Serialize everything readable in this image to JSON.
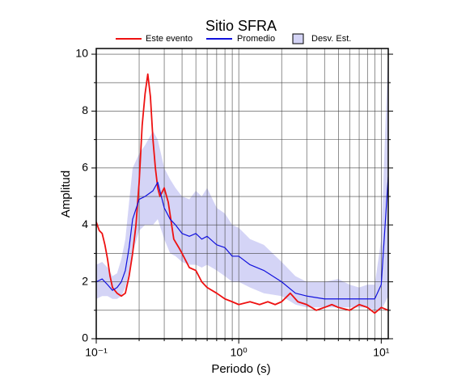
{
  "chart_data": {
    "type": "line",
    "title": "Sitio SFRA",
    "xlabel": "Periodo (s)",
    "ylabel": "Amplitud",
    "xscale": "log",
    "grid": true,
    "legend": "top",
    "xlim": [
      0.1,
      11.2
    ],
    "ylim": [
      0,
      10.2
    ],
    "xticks": [
      {
        "value": 0.1,
        "label": "10⁻¹"
      },
      {
        "value": 1,
        "label": "10⁰"
      },
      {
        "value": 10,
        "label": "10¹"
      }
    ],
    "xminorticks": [
      0.2,
      0.3,
      0.4,
      0.5,
      0.6,
      0.7,
      0.8,
      0.9,
      2,
      3,
      4,
      5,
      6,
      7,
      8,
      9
    ],
    "yticks": [
      0,
      2,
      4,
      6,
      8,
      10
    ],
    "yminorticks": [
      1,
      3,
      5,
      7,
      9
    ],
    "series": [
      {
        "name": "Este evento",
        "color": "#ee1111",
        "x": [
          0.1,
          0.105,
          0.11,
          0.115,
          0.12,
          0.125,
          0.13,
          0.14,
          0.15,
          0.16,
          0.17,
          0.18,
          0.19,
          0.2,
          0.21,
          0.22,
          0.23,
          0.24,
          0.25,
          0.26,
          0.27,
          0.28,
          0.3,
          0.32,
          0.35,
          0.38,
          0.4,
          0.45,
          0.5,
          0.55,
          0.6,
          0.7,
          0.8,
          0.9,
          1.0,
          1.2,
          1.4,
          1.6,
          1.8,
          2.0,
          2.3,
          2.6,
          3.0,
          3.5,
          4.0,
          4.5,
          5.0,
          6.0,
          7.0,
          8.0,
          9.0,
          10,
          11.2
        ],
        "values": [
          4.1,
          3.8,
          3.7,
          3.3,
          2.8,
          2.2,
          1.8,
          1.6,
          1.5,
          1.6,
          2.2,
          3.0,
          4.0,
          5.5,
          7.5,
          8.6,
          9.3,
          8.5,
          7.0,
          6.0,
          5.3,
          5.0,
          5.3,
          4.8,
          3.5,
          3.2,
          3.0,
          2.5,
          2.4,
          2.0,
          1.8,
          1.6,
          1.4,
          1.3,
          1.2,
          1.3,
          1.2,
          1.3,
          1.2,
          1.3,
          1.6,
          1.3,
          1.2,
          1.0,
          1.1,
          1.2,
          1.1,
          1.0,
          1.2,
          1.1,
          0.9,
          1.1,
          1.0
        ]
      },
      {
        "name": "Promedio",
        "color": "#1111dd",
        "x": [
          0.1,
          0.11,
          0.12,
          0.13,
          0.14,
          0.15,
          0.16,
          0.17,
          0.18,
          0.2,
          0.22,
          0.25,
          0.27,
          0.3,
          0.33,
          0.36,
          0.4,
          0.45,
          0.5,
          0.55,
          0.6,
          0.7,
          0.8,
          0.9,
          1.0,
          1.2,
          1.5,
          2.0,
          2.5,
          3.0,
          4.0,
          5.0,
          6.0,
          7.0,
          8.0,
          9.0,
          10,
          11.2
        ],
        "values": [
          2.0,
          2.1,
          1.9,
          1.7,
          1.8,
          2.0,
          2.4,
          3.2,
          4.2,
          4.9,
          5.0,
          5.2,
          5.5,
          4.6,
          4.2,
          4.0,
          3.7,
          3.6,
          3.7,
          3.5,
          3.6,
          3.3,
          3.2,
          2.9,
          2.9,
          2.6,
          2.4,
          2.0,
          1.6,
          1.5,
          1.4,
          1.4,
          1.4,
          1.4,
          1.4,
          1.4,
          1.9,
          5.7
        ]
      },
      {
        "name": "Desv. Est.",
        "color": "#d4d4f6",
        "x": [
          0.1,
          0.11,
          0.12,
          0.13,
          0.14,
          0.15,
          0.16,
          0.17,
          0.18,
          0.2,
          0.22,
          0.25,
          0.27,
          0.3,
          0.33,
          0.36,
          0.4,
          0.45,
          0.5,
          0.55,
          0.6,
          0.7,
          0.8,
          0.9,
          1.0,
          1.2,
          1.5,
          2.0,
          2.5,
          3.0,
          4.0,
          5.0,
          6.0,
          7.0,
          8.0,
          9.0,
          10,
          11.2
        ],
        "lower": [
          1.4,
          1.5,
          1.5,
          1.4,
          1.4,
          1.5,
          1.8,
          2.3,
          3.0,
          3.8,
          4.0,
          4.0,
          4.2,
          3.5,
          3.0,
          2.9,
          2.7,
          2.6,
          2.6,
          2.5,
          2.6,
          2.4,
          2.2,
          2.0,
          2.0,
          1.8,
          1.6,
          1.5,
          1.2,
          1.1,
          1.1,
          1.1,
          1.1,
          1.1,
          1.1,
          1.0,
          1.0,
          1.5
        ],
        "upper": [
          2.6,
          2.7,
          2.5,
          2.2,
          2.3,
          2.8,
          3.5,
          4.8,
          6.0,
          6.5,
          6.8,
          7.3,
          7.0,
          6.0,
          5.6,
          5.3,
          5.0,
          4.9,
          5.2,
          5.0,
          5.3,
          4.6,
          4.4,
          4.0,
          3.9,
          3.5,
          3.3,
          2.7,
          2.2,
          2.0,
          2.0,
          2.1,
          1.9,
          1.8,
          1.9,
          1.9,
          3.5,
          10.2
        ]
      }
    ]
  }
}
